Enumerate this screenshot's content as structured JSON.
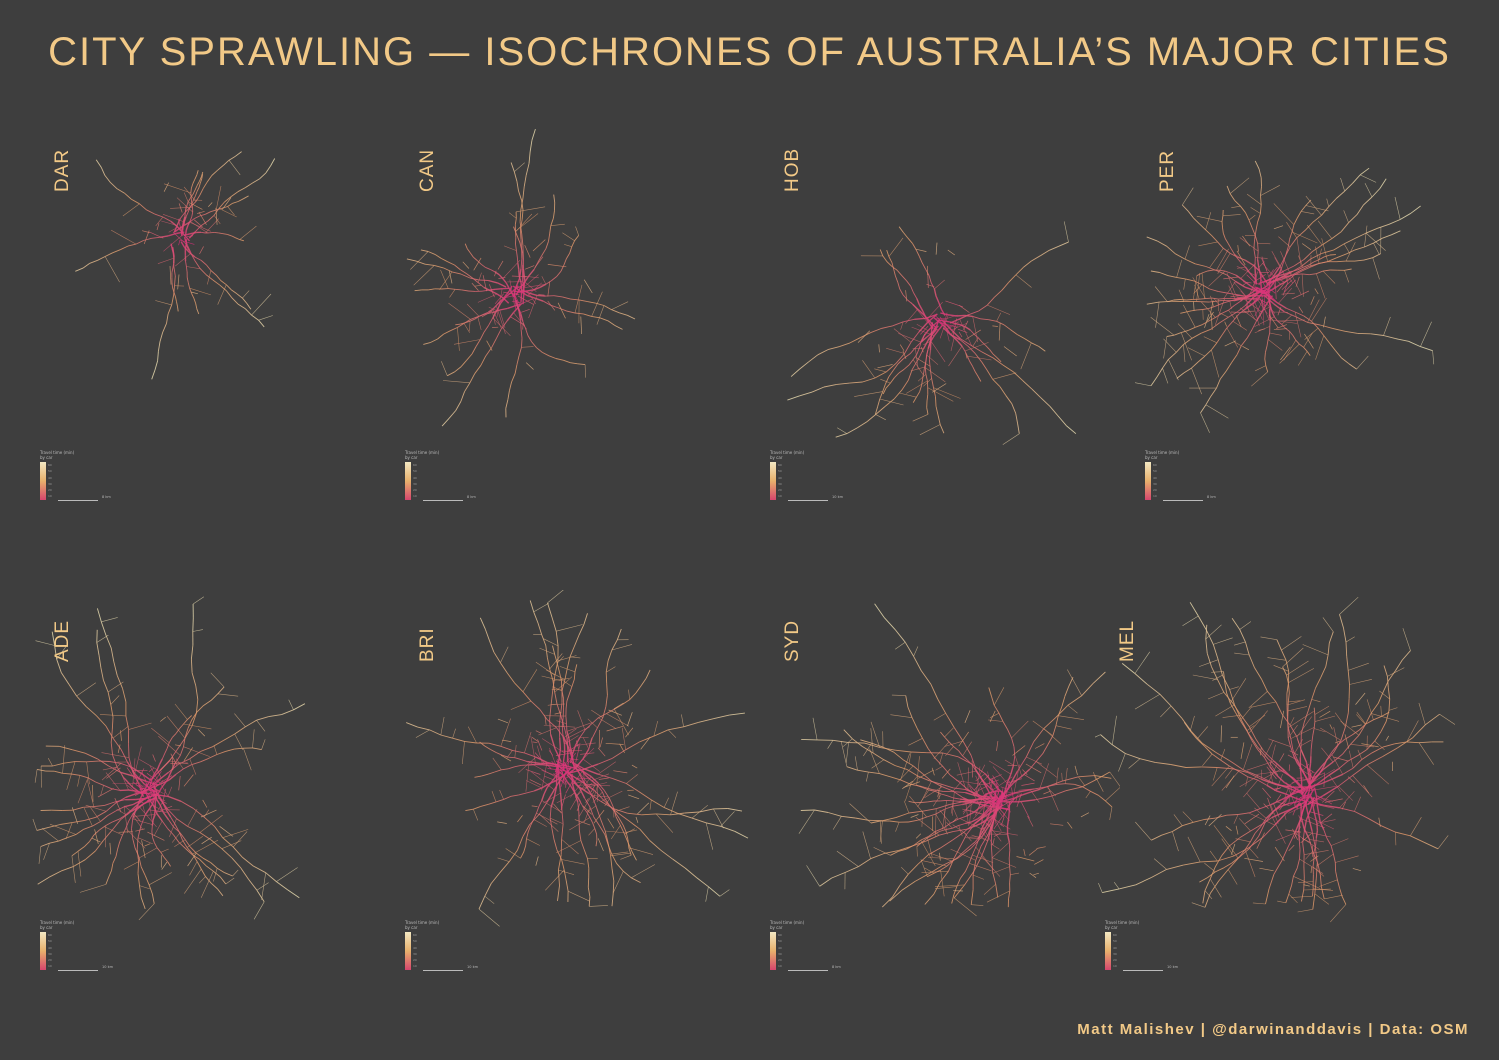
{
  "title": "CITY SPRAWLING — ISOCHRONES OF AUSTRALIA’S MAJOR CITIES",
  "credit": "Matt Malishev | @darwinanddavis | Data: OSM",
  "colors": {
    "background": "#3e3e3e",
    "title": "#f2c987",
    "near": "#d9307a",
    "mid": "#e09a6a",
    "far": "#e8dcb0"
  },
  "legend": {
    "title": "Travel time (min) by car",
    "ticks": [
      "60",
      "50",
      "40",
      "30",
      "20",
      "10"
    ]
  },
  "cities": [
    {
      "code": "DAR",
      "scale": "8 km",
      "sprawl": 0.35,
      "density": 0.25
    },
    {
      "code": "CAN",
      "scale": "8 km",
      "sprawl": 0.55,
      "density": 0.45
    },
    {
      "code": "HOB",
      "scale": "10 km",
      "sprawl": 0.6,
      "density": 0.4
    },
    {
      "code": "PER",
      "scale": "8 km",
      "sprawl": 0.55,
      "density": 0.8
    },
    {
      "code": "ADE",
      "scale": "10 km",
      "sprawl": 0.65,
      "density": 0.75
    },
    {
      "code": "BRI",
      "scale": "10 km",
      "sprawl": 0.75,
      "density": 0.8
    },
    {
      "code": "SYD",
      "scale": "8 km",
      "sprawl": 0.85,
      "density": 0.95
    },
    {
      "code": "MEL",
      "scale": "10 km",
      "sprawl": 0.9,
      "density": 1.0
    }
  ]
}
